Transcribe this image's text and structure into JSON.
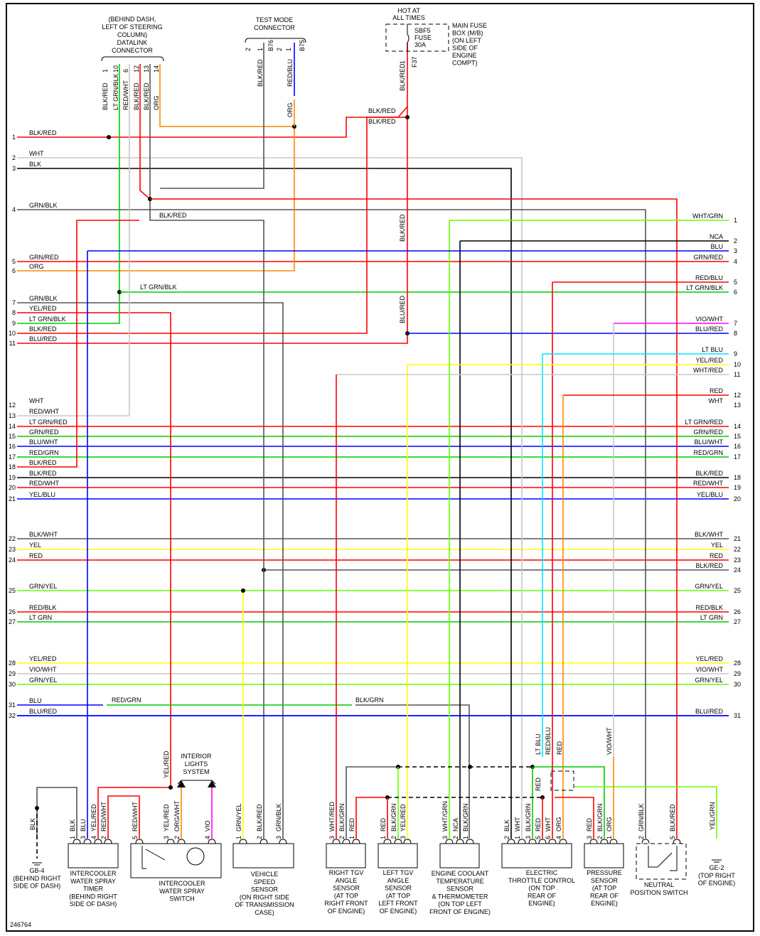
{
  "diagram_id": "246764",
  "wire_colors": {
    "BLK": "#000000",
    "RED": "#ff0000",
    "WHT": "#c8c8c8",
    "GRN": "#00cc00",
    "LTGRN": "#66ff00",
    "BLU": "#0000ff",
    "LTBLU": "#00e5ff",
    "YEL": "#ffff00",
    "ORG": "#ff8800",
    "VIO": "#ff00ff",
    "GRY": "#555555"
  },
  "top": {
    "datalink": {
      "title": [
        "(BEHIND DASH,",
        "LEFT OF STEERING",
        "COLUMN)",
        "DATALINK",
        "CONNECTOR"
      ],
      "pins": [
        "1",
        "10",
        "6",
        "12",
        "13",
        "14"
      ],
      "wires": [
        "BLK/RED",
        "LT GRN/BLK",
        "RED/WHT",
        "BLK/RED",
        "BLK/RED",
        "ORG"
      ]
    },
    "test_mode": {
      "title": [
        "TEST MODE",
        "CONNECTOR"
      ],
      "pins": [
        "2",
        "1",
        "B76",
        "2",
        "1",
        "B75"
      ],
      "wires": [
        "BLK/RED",
        "RED/BLU",
        "ORG"
      ]
    },
    "fuse": {
      "hot": [
        "HOT AT",
        "ALL TIMES"
      ],
      "fuse_label": [
        "SBF5",
        "FUSE",
        "30A"
      ],
      "box_label": [
        "MAIN FUSE",
        "BOX (M/B)",
        "(ON LEFT",
        "SIDE OF",
        "ENGINE",
        "COMPT)"
      ],
      "pin": "1",
      "connector": "F37",
      "wire": "BLK/RED",
      "branch_labels": [
        "BLK/RED",
        "BLK/RED"
      ],
      "lower_labels": [
        "BLK/RED",
        "BLU/RED"
      ]
    },
    "mid_labels": {
      "lt_grn_blk": "LT GRN/BLK",
      "blk_red": "BLK/RED"
    }
  },
  "left_rows": [
    {
      "n": "1",
      "label": "BLK/RED"
    },
    {
      "n": "2",
      "label": "WHT"
    },
    {
      "n": "3",
      "label": "BLK"
    },
    {
      "n": "4",
      "label": "GRN/BLK"
    },
    {
      "n": "5",
      "label": "GRN/RED"
    },
    {
      "n": "6",
      "label": "ORG"
    },
    {
      "n": "7",
      "label": "GRN/BLK"
    },
    {
      "n": "8",
      "label": "YEL/RED"
    },
    {
      "n": "9",
      "label": "LT GRN/BLK"
    },
    {
      "n": "10",
      "label": "BLK/RED"
    },
    {
      "n": "11",
      "label": "BLU/RED"
    },
    {
      "n": "12",
      "label": "WHT"
    },
    {
      "n": "13",
      "label": "RED/WHT"
    },
    {
      "n": "14",
      "label": "LT GRN/RED"
    },
    {
      "n": "15",
      "label": "GRN/RED"
    },
    {
      "n": "16",
      "label": "BLU/WHT"
    },
    {
      "n": "17",
      "label": "RED/GRN"
    },
    {
      "n": "18",
      "label": "BLK/RED"
    },
    {
      "n": "19",
      "label": "BLK/RED"
    },
    {
      "n": "20",
      "label": "RED/WHT"
    },
    {
      "n": "21",
      "label": "YEL/BLU"
    },
    {
      "n": "22",
      "label": "BLK/WHT"
    },
    {
      "n": "23",
      "label": "YEL"
    },
    {
      "n": "24",
      "label": "RED"
    },
    {
      "n": "25",
      "label": "GRN/YEL"
    },
    {
      "n": "26",
      "label": "RED/BLK"
    },
    {
      "n": "27",
      "label": "LT GRN"
    },
    {
      "n": "28",
      "label": "YEL/RED"
    },
    {
      "n": "29",
      "label": "VIO/WHT"
    },
    {
      "n": "30",
      "label": "GRN/YEL"
    },
    {
      "n": "31",
      "label": "BLU"
    },
    {
      "n": "32",
      "label": "BLU/RED"
    }
  ],
  "right_rows": [
    {
      "n": "1",
      "label": "WHT/GRN"
    },
    {
      "n": "2",
      "label": "NCA"
    },
    {
      "n": "3",
      "label": "BLU"
    },
    {
      "n": "4",
      "label": "GRN/RED"
    },
    {
      "n": "5",
      "label": "RED/BLU"
    },
    {
      "n": "6",
      "label": "LT GRN/BLK"
    },
    {
      "n": "7",
      "label": "VIO/WHT"
    },
    {
      "n": "8",
      "label": "BLU/RED"
    },
    {
      "n": "9",
      "label": "LT BLU"
    },
    {
      "n": "10",
      "label": "YEL/RED"
    },
    {
      "n": "11",
      "label": "WHT/RED"
    },
    {
      "n": "12",
      "label": "RED"
    },
    {
      "n": "13",
      "label": "WHT"
    },
    {
      "n": "14",
      "label": "LT GRN/RED"
    },
    {
      "n": "15",
      "label": "GRN/RED"
    },
    {
      "n": "16",
      "label": "BLU/WHT"
    },
    {
      "n": "17",
      "label": "RED/GRN"
    },
    {
      "n": "18",
      "label": "BLK/RED"
    },
    {
      "n": "19",
      "label": "RED/WHT"
    },
    {
      "n": "20",
      "label": "YEL/BLU"
    },
    {
      "n": "21",
      "label": "BLK/WHT"
    },
    {
      "n": "22",
      "label": "YEL"
    },
    {
      "n": "23",
      "label": "RED"
    },
    {
      "n": "24",
      "label": "BLK/RED"
    },
    {
      "n": "25",
      "label": "GRN/YEL"
    },
    {
      "n": "26",
      "label": "RED/BLK"
    },
    {
      "n": "27",
      "label": "LT GRN"
    },
    {
      "n": "28",
      "label": "YEL/RED"
    },
    {
      "n": "29",
      "label": "VIO/WHT"
    },
    {
      "n": "30",
      "label": "GRN/YEL"
    },
    {
      "n": "31",
      "label": "BLU/RED"
    }
  ],
  "row31_splices": [
    "RED/GRN",
    "BLK/GRN"
  ],
  "interior_lights": [
    "INTERIOR",
    "LIGHTS",
    "SYSTEM"
  ],
  "components": [
    {
      "id": "ground-gb4",
      "name": [
        "GB-4",
        "(BEHIND RIGHT",
        "SIDE OF DASH)"
      ],
      "pins": [
        {
          "n": "",
          "w": "BLK"
        }
      ]
    },
    {
      "id": "intercooler-timer",
      "name": [
        "INTERCOOLER",
        "WATER SPRAY",
        "TIMER",
        "(BEHIND RIGHT",
        "SIDE OF DASH)"
      ],
      "pins": [
        {
          "n": "1",
          "w": "BLK"
        },
        {
          "n": "3",
          "w": "BLU"
        },
        {
          "n": "4",
          "w": "YEL/RED"
        },
        {
          "n": "2",
          "w": "RED/WHT"
        }
      ]
    },
    {
      "id": "intercooler-switch",
      "name": [
        "INTERCOOLER",
        "WATER SPRAY",
        "SWITCH"
      ],
      "pins": [
        {
          "n": "5",
          "w": "RED/WHT"
        },
        {
          "n": "3",
          "w": "YEL/RED"
        },
        {
          "n": "2",
          "w": "ORG/WHT"
        },
        {
          "n": "4",
          "w": "VIO"
        }
      ],
      "above": "YEL/RED"
    },
    {
      "id": "vehicle-speed-sensor",
      "name": [
        "VEHICLE",
        "SPEED",
        "SENSOR",
        "(ON RIGHT SIDE",
        "OF TRANSMISSION",
        "CASE)"
      ],
      "pins": [
        {
          "n": "1",
          "w": "GRN/YEL"
        },
        {
          "n": "2",
          "w": "BLK/RED"
        },
        {
          "n": "3",
          "w": "GRN/BLK"
        }
      ]
    },
    {
      "id": "right-tgv-sensor",
      "name": [
        "RIGHT TGV",
        "ANGLE",
        "SENSOR",
        "(AT TOP",
        "RIGHT FRONT",
        "OF ENGINE)"
      ],
      "pins": [
        {
          "n": "3",
          "w": "WHT/RED"
        },
        {
          "n": "2",
          "w": "BLK/GRN"
        },
        {
          "n": "1",
          "w": "RED"
        }
      ]
    },
    {
      "id": "left-tgv-sensor",
      "name": [
        "LEFT TGV",
        "ANGLE",
        "SENSOR",
        "(AT TOP",
        "LEFT FRONT",
        "OF ENGINE)"
      ],
      "pins": [
        {
          "n": "1",
          "w": "RED"
        },
        {
          "n": "2",
          "w": "BLK/GRN"
        },
        {
          "n": "3",
          "w": "YEL/RED"
        }
      ]
    },
    {
      "id": "coolant-temp-sensor",
      "name": [
        "ENGINE COOLANT",
        "TEMPERATURE",
        "SENSOR",
        "& THERMOMETER",
        "(ON TOP LEFT",
        "FRONT OF ENGINE)"
      ],
      "pins": [
        {
          "n": "3",
          "w": "WHT/GRN"
        },
        {
          "n": "2",
          "w": "NCA"
        },
        {
          "n": "1",
          "w": "BLK/GRN"
        }
      ]
    },
    {
      "id": "electric-throttle-control",
      "name": [
        "ELECTRIC",
        "THROTTLE CONTROL",
        "(ON TOP",
        "REAR OF",
        "ENGINE)"
      ],
      "pins": [
        {
          "n": "2",
          "w": "BLK"
        },
        {
          "n": "1",
          "w": "WHT"
        },
        {
          "n": "3",
          "w": "BLK/GRN"
        },
        {
          "n": "5",
          "w": "RED"
        },
        {
          "n": "6",
          "w": "WHT"
        },
        {
          "n": "4",
          "w": "ORG"
        }
      ],
      "above": [
        "LT BLU",
        "RED/BLU",
        "RED",
        "RED"
      ]
    },
    {
      "id": "pressure-sensor",
      "name": [
        "PRESSURE",
        "SENSOR",
        "(AT TOP",
        "REAR OF",
        "ENGINE)"
      ],
      "pins": [
        {
          "n": "3",
          "w": "RED"
        },
        {
          "n": "2",
          "w": "BLK/GRN"
        },
        {
          "n": "1",
          "w": "ORG"
        }
      ],
      "above": "VIO/WHT"
    },
    {
      "id": "neutral-position-switch",
      "name": [
        "NEUTRAL",
        "POSITION SWITCH"
      ],
      "pins": [
        {
          "n": "2",
          "w": "GRN/BLK"
        },
        {
          "n": "5",
          "w": "BLK/RED"
        }
      ]
    },
    {
      "id": "ground-ge2",
      "name": [
        "GE-2",
        "(TOP RIGHT",
        "OF ENGINE)"
      ],
      "pins": [
        {
          "n": "",
          "w": "YEL/GRN"
        }
      ]
    }
  ]
}
